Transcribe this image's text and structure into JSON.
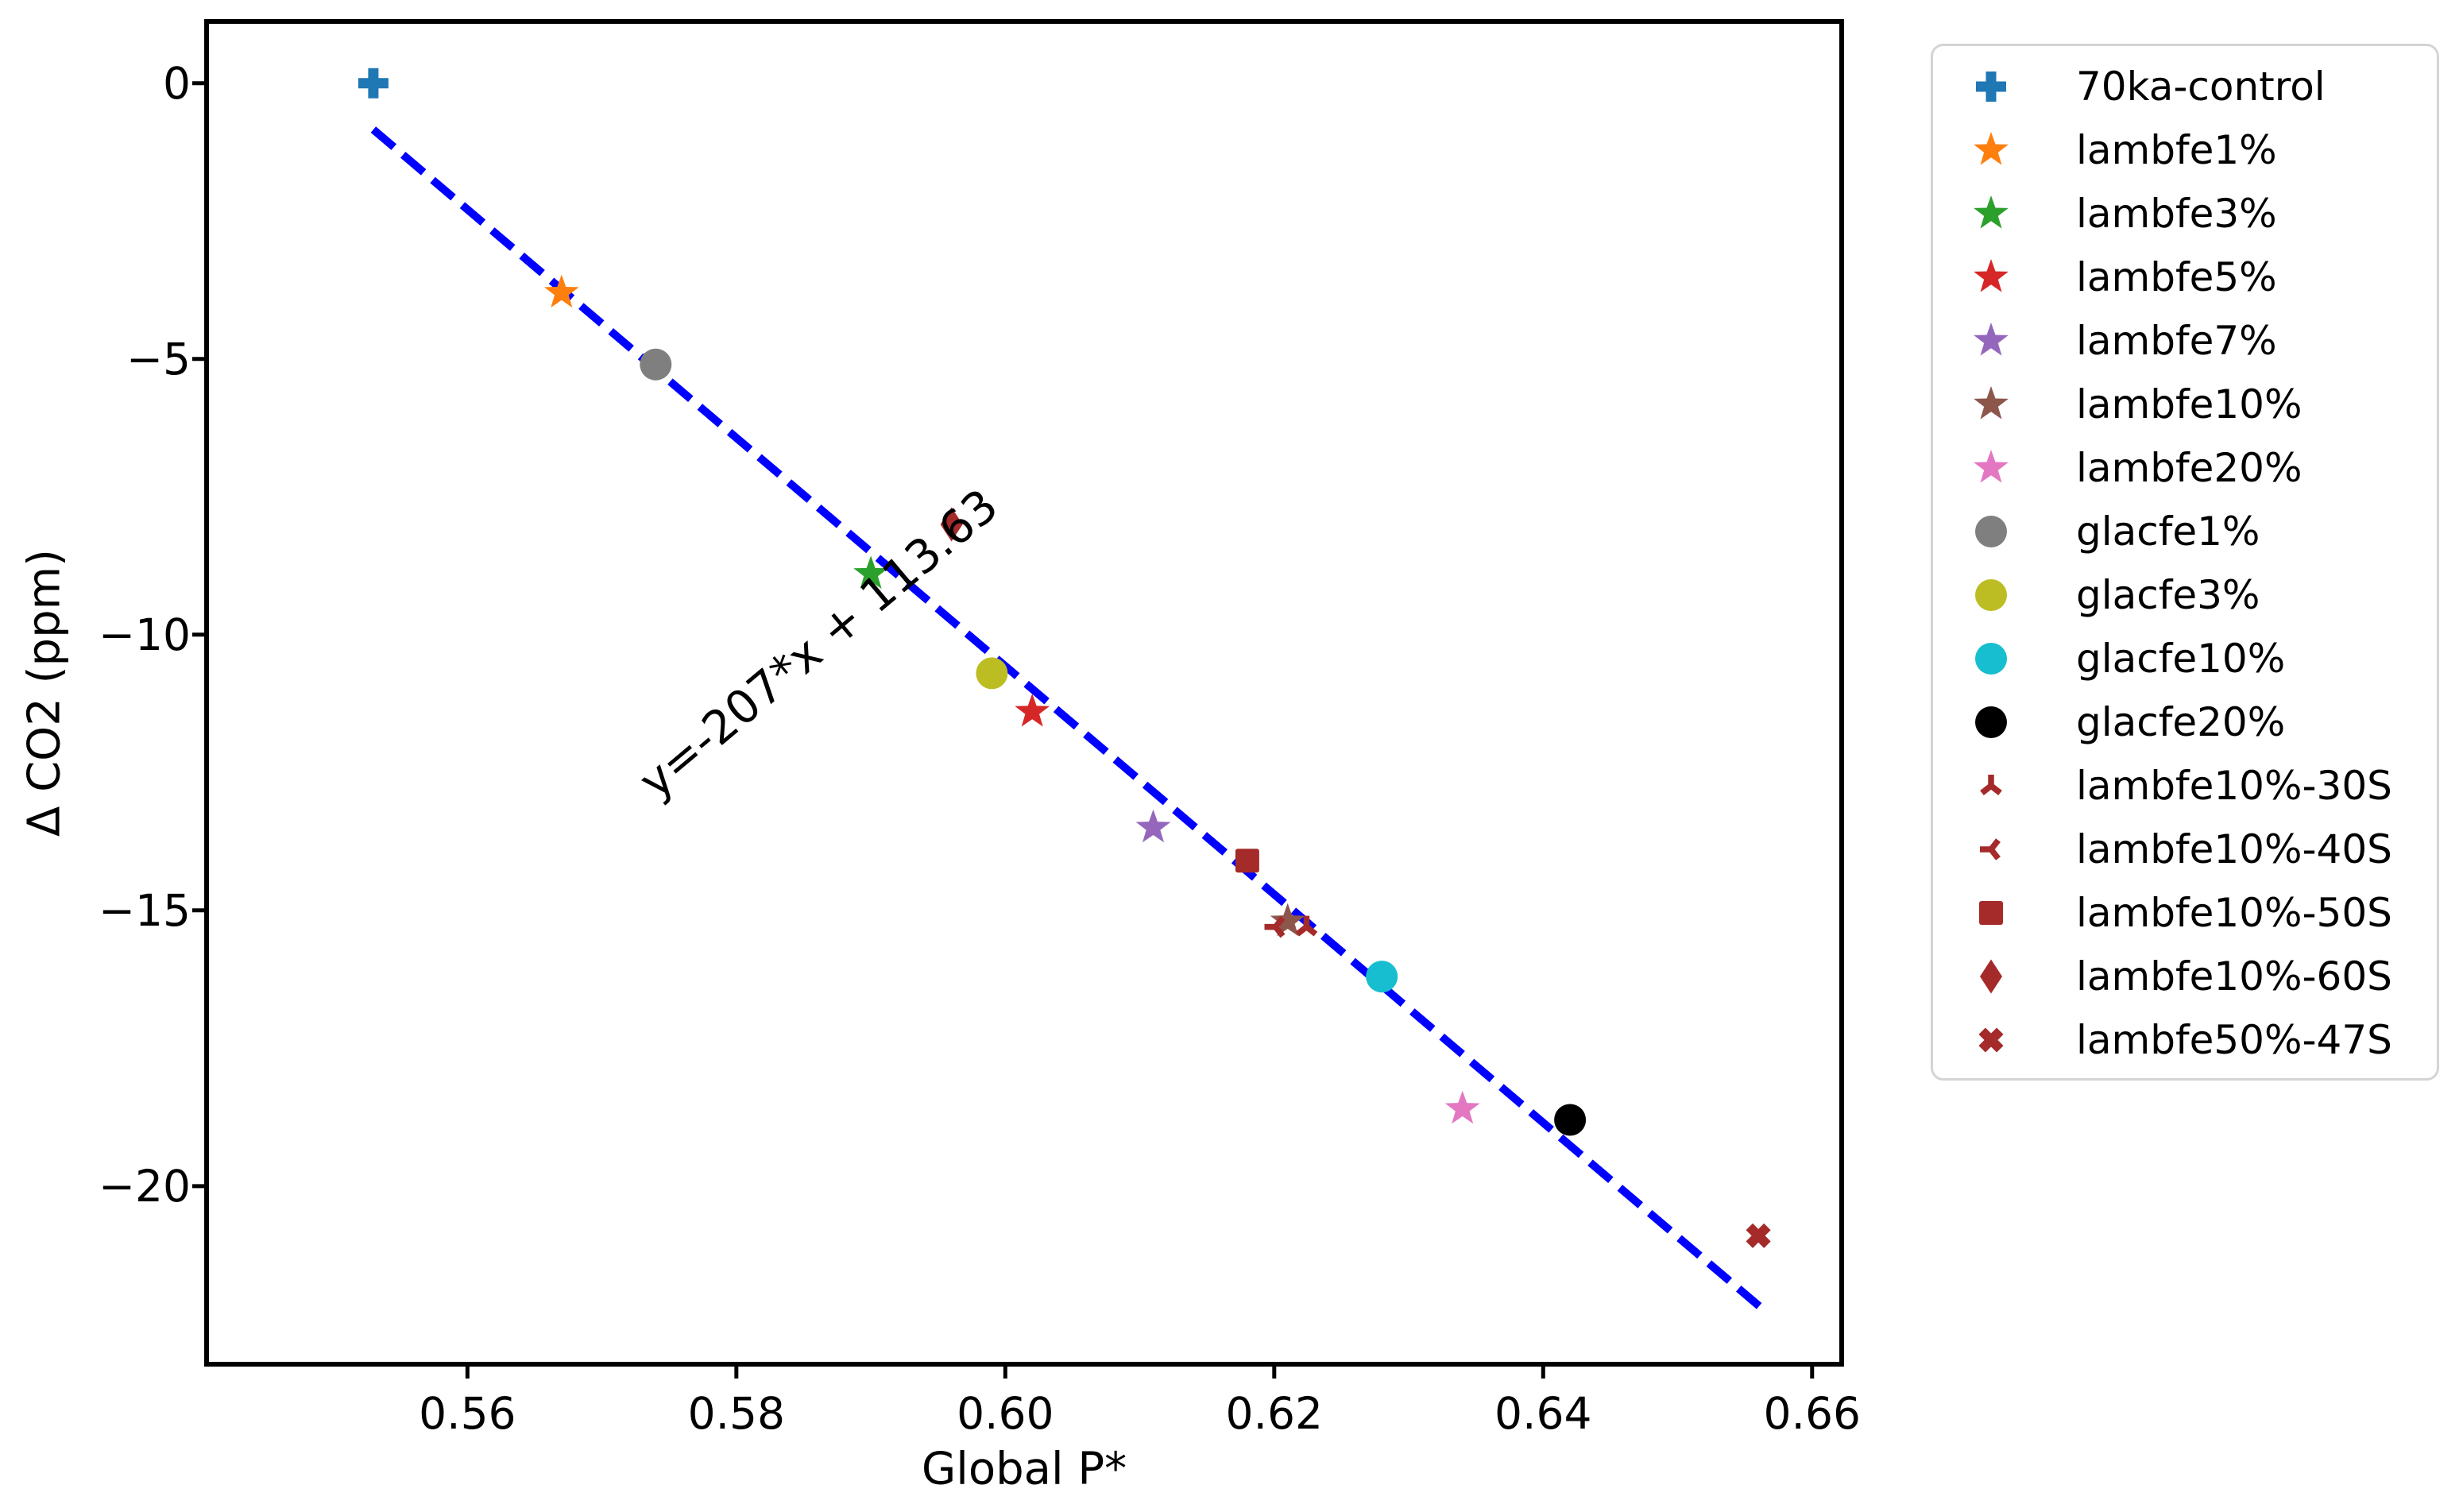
{
  "figure": {
    "background": "#ffffff"
  },
  "chart_data": {
    "type": "scatter",
    "title": "",
    "xlabel": "Global P*",
    "ylabel": "Δ CO2 (ppm)",
    "xlim": [
      0.5406,
      0.6622
    ],
    "ylim": [
      -23.23,
      1.12
    ],
    "grid": false,
    "legend_position": "outside-right",
    "xticks": [
      {
        "value": 0.56,
        "label": "0.56"
      },
      {
        "value": 0.58,
        "label": "0.58"
      },
      {
        "value": 0.6,
        "label": "0.60"
      },
      {
        "value": 0.62,
        "label": "0.62"
      },
      {
        "value": 0.64,
        "label": "0.64"
      },
      {
        "value": 0.66,
        "label": "0.66"
      }
    ],
    "yticks": [
      {
        "value": 0,
        "label": "0"
      },
      {
        "value": -5,
        "label": "−5"
      },
      {
        "value": -10,
        "label": "−10"
      },
      {
        "value": -15,
        "label": "−15"
      },
      {
        "value": -20,
        "label": "−20"
      }
    ],
    "fit_line": {
      "slope": -207,
      "intercept": 113.63,
      "x_start": 0.553,
      "x_end": 0.6565,
      "color": "#0000ff",
      "style": "dashed"
    },
    "annotation": {
      "text": "y=-207*x + 113.63",
      "x": 0.5861,
      "y": -10.16,
      "rotation_deg": -40
    },
    "series": [
      {
        "name": "70ka-control",
        "marker": "plus",
        "color": "#1f77b4",
        "x": 0.553,
        "y": 0.0
      },
      {
        "name": "lambfe1%",
        "marker": "star",
        "color": "#ff7f0e",
        "x": 0.567,
        "y": -3.8
      },
      {
        "name": "lambfe3%",
        "marker": "star",
        "color": "#2ca02c",
        "x": 0.59,
        "y": -8.9
      },
      {
        "name": "lambfe5%",
        "marker": "star",
        "color": "#d62728",
        "x": 0.602,
        "y": -11.4
      },
      {
        "name": "lambfe7%",
        "marker": "star",
        "color": "#9467bd",
        "x": 0.611,
        "y": -13.5
      },
      {
        "name": "lambfe10%",
        "marker": "star",
        "color": "#8c564b",
        "x": 0.621,
        "y": -15.2
      },
      {
        "name": "lambfe20%",
        "marker": "star",
        "color": "#e377c2",
        "x": 0.634,
        "y": -18.6
      },
      {
        "name": "glacfe1%",
        "marker": "circle",
        "color": "#7f7f7f",
        "x": 0.574,
        "y": -5.1
      },
      {
        "name": "glacfe3%",
        "marker": "circle",
        "color": "#bcbd22",
        "x": 0.599,
        "y": -10.7
      },
      {
        "name": "glacfe10%",
        "marker": "circle",
        "color": "#17becf",
        "x": 0.628,
        "y": -16.2
      },
      {
        "name": "glacfe20%",
        "marker": "circle",
        "color": "#000000",
        "x": 0.642,
        "y": -18.8
      },
      {
        "name": "lambfe10%-30S",
        "marker": "tri_up",
        "color": "#a52a2a",
        "x": 0.6224,
        "y": -15.3
      },
      {
        "name": "lambfe10%-40S",
        "marker": "tri_left",
        "color": "#a52a2a",
        "x": 0.6201,
        "y": -15.3
      },
      {
        "name": "lambfe10%-50S",
        "marker": "square",
        "color": "#a52a2a",
        "x": 0.618,
        "y": -14.1
      },
      {
        "name": "lambfe10%-60S",
        "marker": "diamond",
        "color": "#a52a2a",
        "x": 0.596,
        "y": -8.0
      },
      {
        "name": "lambfe50%-47S",
        "marker": "x",
        "color": "#a52a2a",
        "x": 0.656,
        "y": -20.9
      }
    ]
  }
}
